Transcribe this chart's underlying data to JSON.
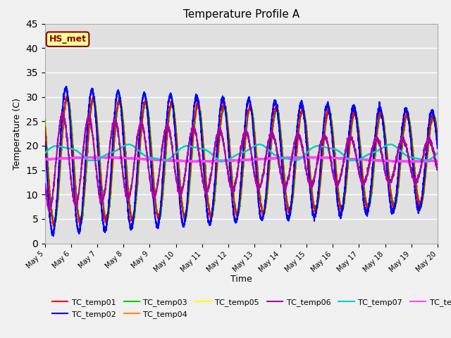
{
  "title": "Temperature Profile A",
  "xlabel": "Time",
  "ylabel": "Temperature (C)",
  "ylim": [
    0,
    45
  ],
  "yticks": [
    0,
    5,
    10,
    15,
    20,
    25,
    30,
    35,
    40,
    45
  ],
  "plot_bg": "#e0e0e0",
  "fig_bg": "#f0f0f0",
  "annotation_label": "HS_met",
  "annotation_color": "#8b0000",
  "annotation_bg": "#ffff99",
  "series_colors": {
    "TC_temp01": "#ff0000",
    "TC_temp02": "#0000ff",
    "TC_temp03": "#00cc00",
    "TC_temp04": "#ff8800",
    "TC_temp05": "#ffff00",
    "TC_temp06": "#aa00aa",
    "TC_temp07": "#00cccc",
    "TC_temp08": "#ff44ff"
  },
  "n_days": 15,
  "start_day": 5
}
